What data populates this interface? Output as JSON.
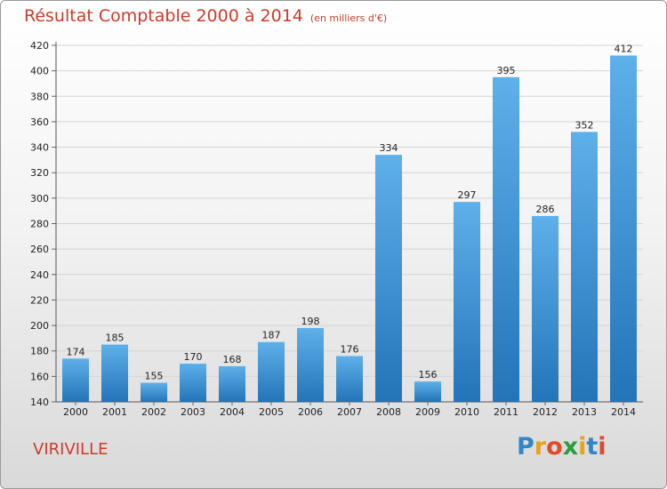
{
  "title": "Résultat Comptable 2000 à 2014",
  "subtitle": "(en milliers d'€)",
  "place": "VIRIVILLE",
  "logo": {
    "letters": [
      "P",
      "r",
      "o",
      "x",
      "i",
      "t",
      "i"
    ],
    "colors": [
      "#2f86c8",
      "#e8a21c",
      "#e24a2a",
      "#2a9d3c",
      "#e8a21c",
      "#2f86c8",
      "#e24a2a"
    ]
  },
  "colors": {
    "title": "#cc3b2a",
    "bar_light": "#5eb0ea",
    "bar_dark": "#2374b8"
  },
  "chart_data": {
    "type": "bar",
    "categories": [
      "2000",
      "2001",
      "2002",
      "2003",
      "2004",
      "2005",
      "2006",
      "2007",
      "2008",
      "2009",
      "2010",
      "2011",
      "2012",
      "2013",
      "2014"
    ],
    "values": [
      174,
      185,
      155,
      170,
      168,
      187,
      198,
      176,
      334,
      156,
      297,
      395,
      286,
      352,
      412
    ],
    "ylim": [
      140,
      420
    ],
    "yticks": [
      140,
      160,
      180,
      200,
      220,
      240,
      260,
      280,
      300,
      320,
      340,
      360,
      380,
      400,
      420
    ],
    "grid": true
  }
}
